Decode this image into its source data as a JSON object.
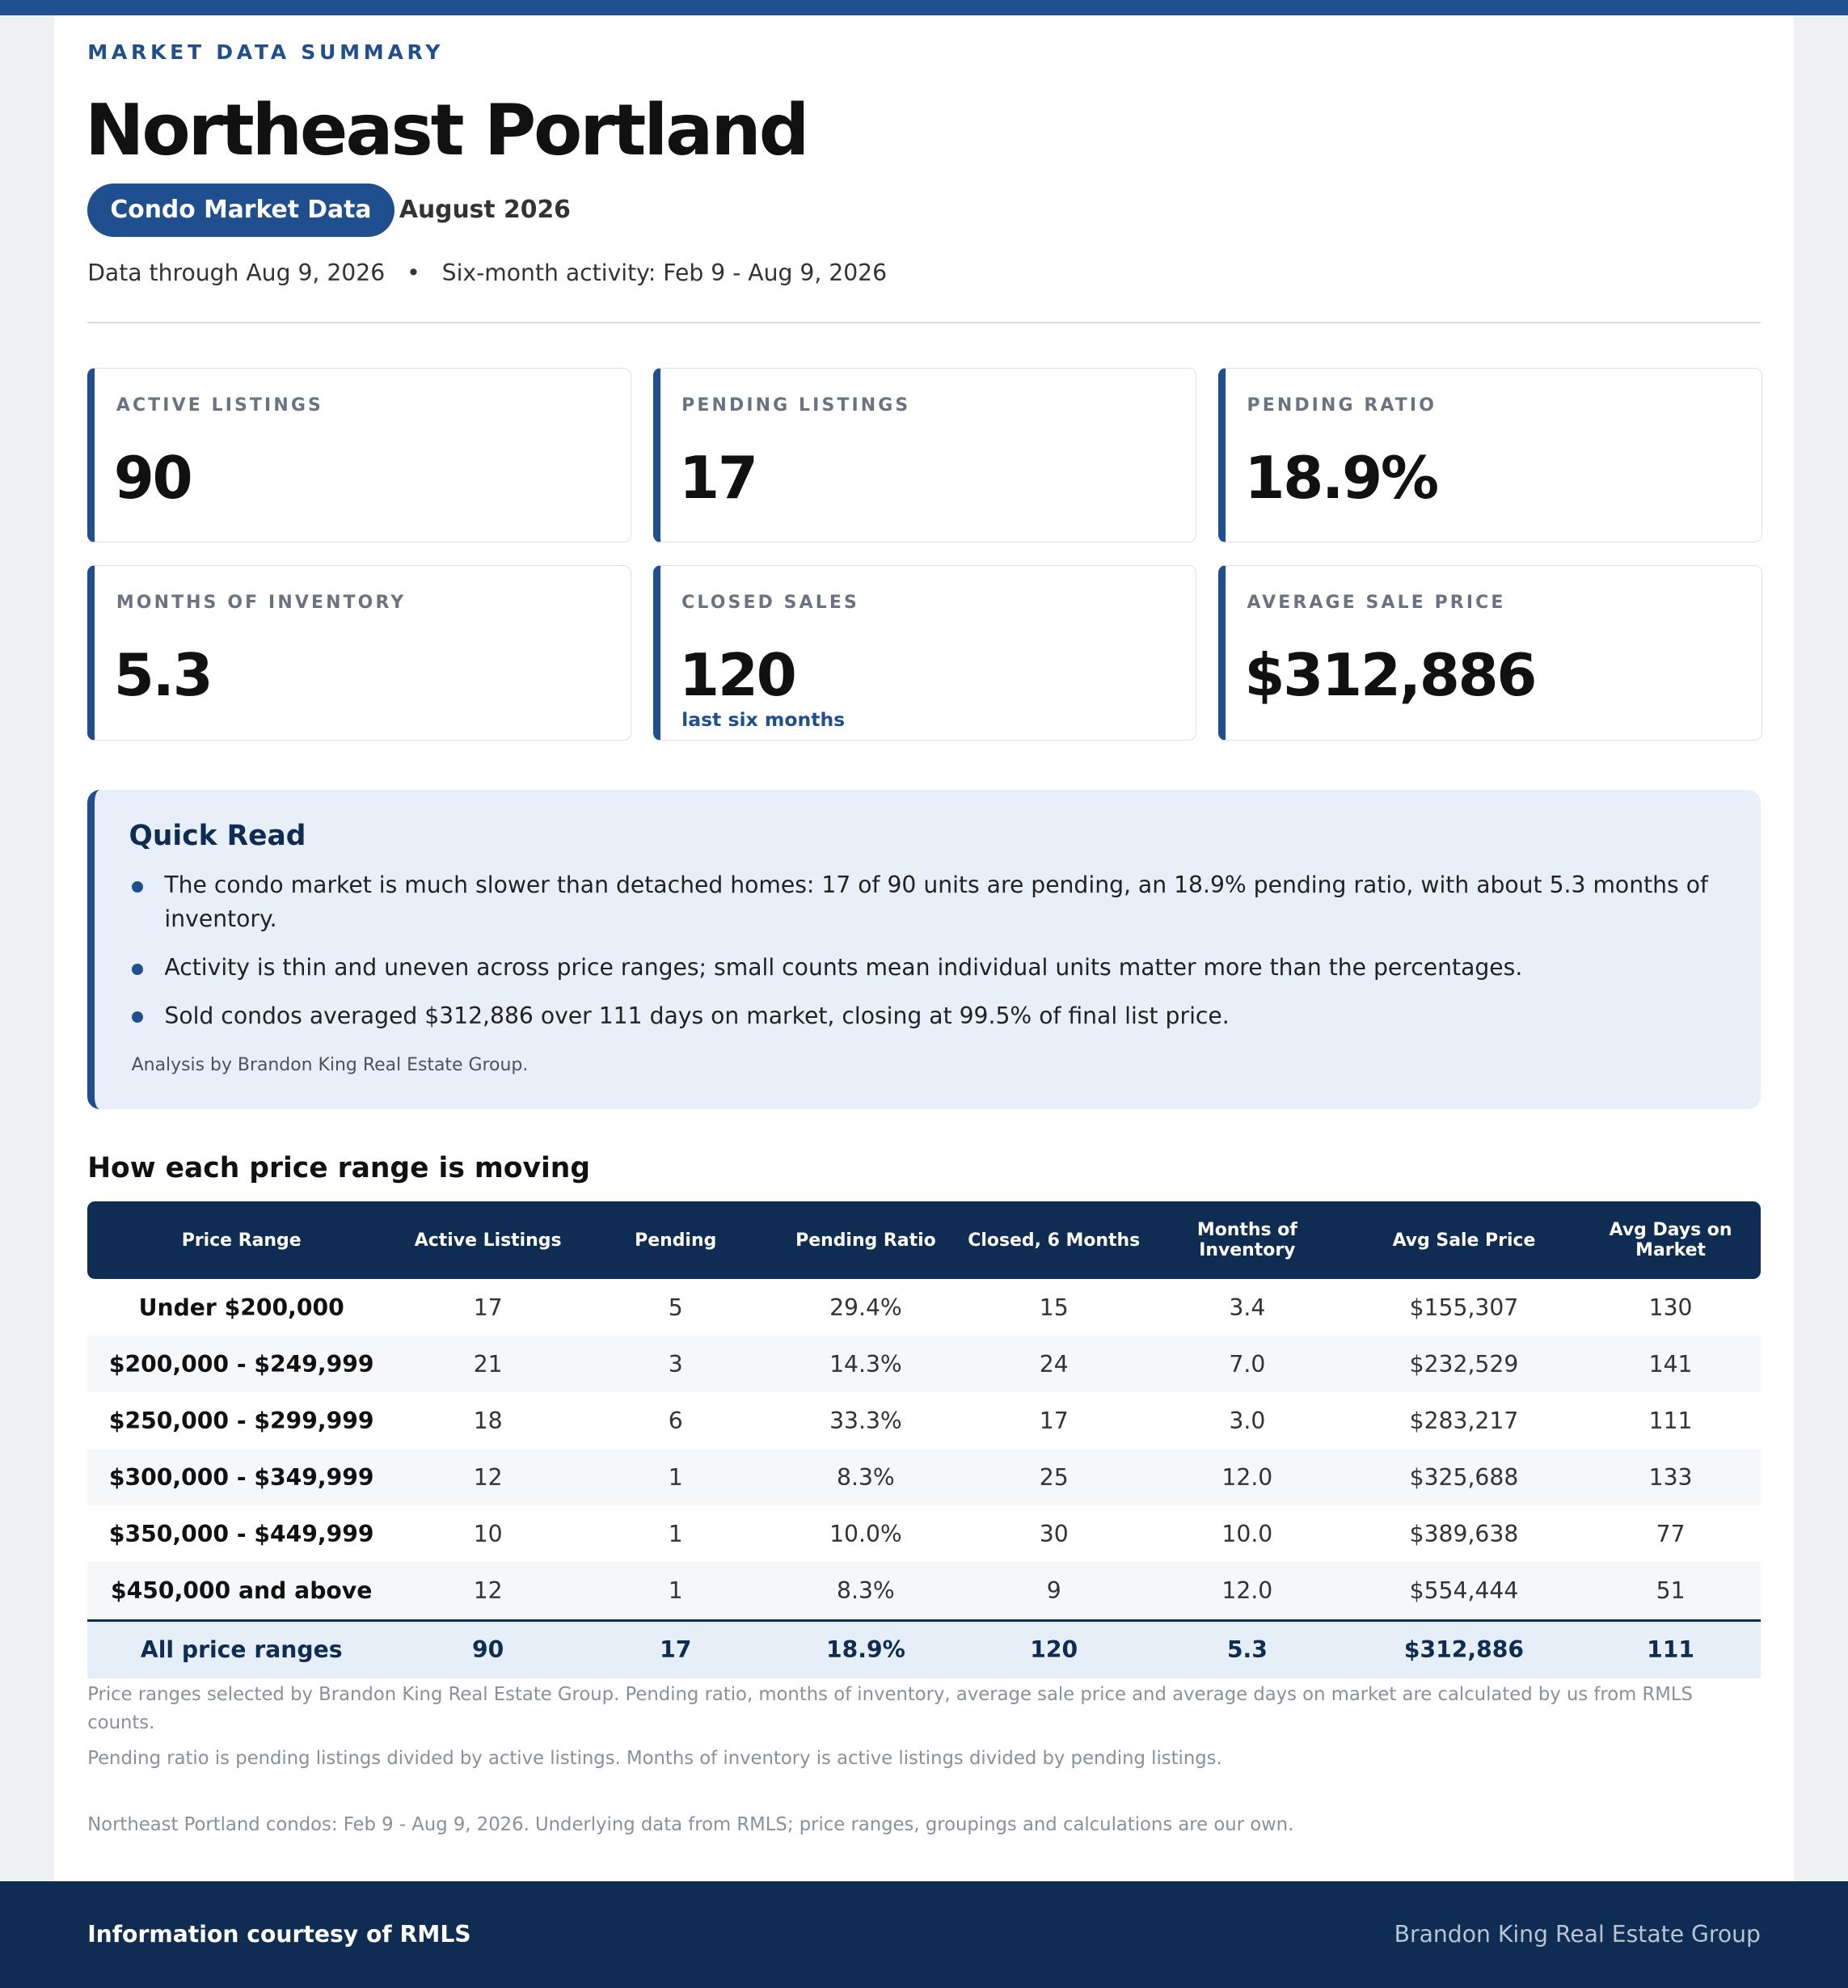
{
  "header": {
    "eyebrow": "MARKET DATA SUMMARY",
    "title": "Northeast Portland",
    "badge": "Condo Market Data",
    "period": "August 2026",
    "data_through": "Data through Aug 9, 2026",
    "separator": "•",
    "activity": "Six-month activity: Feb 9 - Aug 9, 2026"
  },
  "kpis": [
    {
      "label": "ACTIVE LISTINGS",
      "value": "90"
    },
    {
      "label": "PENDING LISTINGS",
      "value": "17"
    },
    {
      "label": "PENDING RATIO",
      "value": "18.9%"
    },
    {
      "label": "MONTHS OF INVENTORY",
      "value": "5.3"
    },
    {
      "label": "CLOSED SALES",
      "value": "120",
      "note": "last six months"
    },
    {
      "label": "AVERAGE SALE PRICE",
      "value": "$312,886"
    }
  ],
  "quick_read": {
    "title": "Quick Read",
    "bullets": [
      "The condo market is much slower than detached homes: 17 of 90 units are pending, an 18.9% pending ratio, with about 5.3 months of inventory.",
      "Activity is thin and uneven across price ranges; small counts mean individual units matter more than the percentages.",
      "Sold condos averaged $312,886 over 111 days on market, closing at 99.5% of final list price."
    ],
    "credit": "Analysis by Brandon King Real Estate Group."
  },
  "table": {
    "title": "How each price range is moving",
    "columns": [
      "Price Range",
      "Active Listings",
      "Pending",
      "Pending Ratio",
      "Closed, 6 Months",
      "Months of Inventory",
      "Avg Sale Price",
      "Avg Days on Market"
    ],
    "rows": [
      [
        "Under $200,000",
        "17",
        "5",
        "29.4%",
        "15",
        "3.4",
        "$155,307",
        "130"
      ],
      [
        "$200,000 - $249,999",
        "21",
        "3",
        "14.3%",
        "24",
        "7.0",
        "$232,529",
        "141"
      ],
      [
        "$250,000 - $299,999",
        "18",
        "6",
        "33.3%",
        "17",
        "3.0",
        "$283,217",
        "111"
      ],
      [
        "$300,000 - $349,999",
        "12",
        "1",
        "8.3%",
        "25",
        "12.0",
        "$325,688",
        "133"
      ],
      [
        "$350,000 - $449,999",
        "10",
        "1",
        "10.0%",
        "30",
        "10.0",
        "$389,638",
        "77"
      ],
      [
        "$450,000 and above",
        "12",
        "1",
        "8.3%",
        "9",
        "12.0",
        "$554,444",
        "51"
      ]
    ],
    "total": [
      "All price ranges",
      "90",
      "17",
      "18.9%",
      "120",
      "5.3",
      "$312,886",
      "111"
    ]
  },
  "notes": [
    "Price ranges selected by Brandon King Real Estate Group. Pending ratio, months of inventory, average sale price and average days on market are calculated by us from RMLS counts.",
    "Pending ratio is pending listings divided by active listings. Months of inventory is active listings divided by pending listings."
  ],
  "source": "Northeast Portland condos: Feb 9 - Aug 9, 2026. Underlying data from RMLS; price ranges, groupings and calculations are our own.",
  "footer": {
    "left": "Information courtesy of RMLS",
    "right": "Brandon King Real Estate Group"
  }
}
